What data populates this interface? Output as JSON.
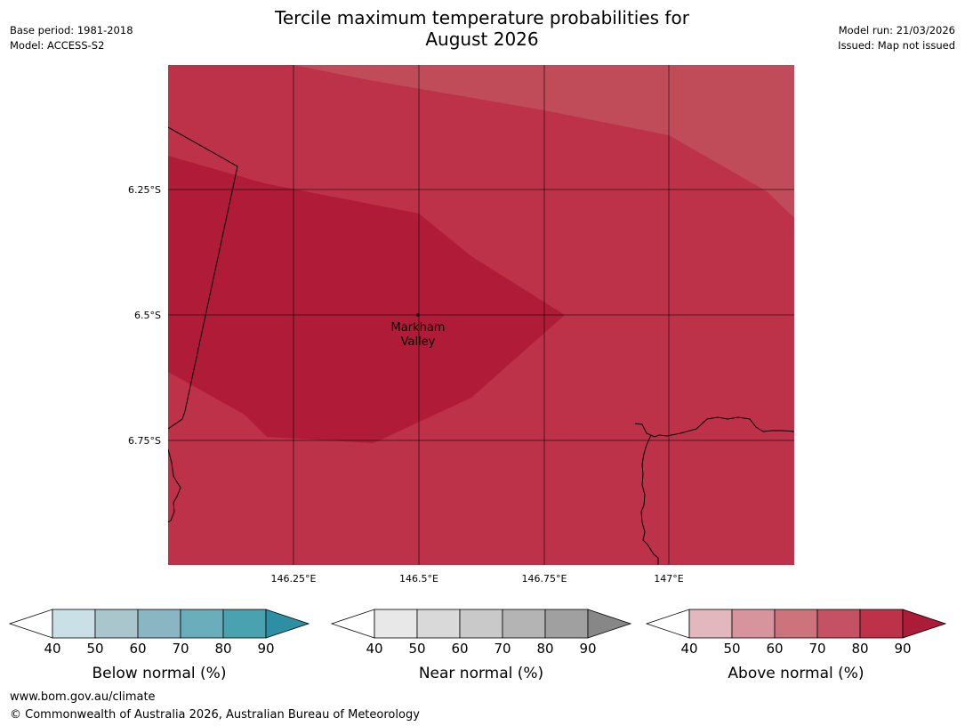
{
  "header": {
    "title_line1": "Tercile maximum temperature probabilities for",
    "title_line2": "August 2026",
    "base_period": "Base period: 1981-2018",
    "model": "Model: ACCESS-S2",
    "model_run": "Model run: 21/03/2026",
    "issued": "Issued: Map not issued"
  },
  "map": {
    "lat_labels": [
      "6.25°S",
      "6.5°S",
      "6.75°S"
    ],
    "lon_labels": [
      "146.25°E",
      "146.5°E",
      "146.75°E",
      "147°E"
    ],
    "place_line1": "Markham",
    "place_line2": "Valley",
    "colors": {
      "above_50_60": "#c04c5a",
      "above_60_70": "#bd3249",
      "above_70_80": "#b01c38",
      "grid": "#000000",
      "coast": "#000000"
    }
  },
  "legends": [
    {
      "label": "Below normal (%)",
      "ticks": [
        "40",
        "50",
        "60",
        "70",
        "80",
        "90"
      ],
      "colors": [
        "#ffffff",
        "#c9e1e6",
        "#a8c6cc",
        "#8ab5c2",
        "#6baebb",
        "#4aa2b0",
        "#2d8fa3"
      ]
    },
    {
      "label": "Near normal (%)",
      "ticks": [
        "40",
        "50",
        "60",
        "70",
        "80",
        "90"
      ],
      "colors": [
        "#ffffff",
        "#e8e8e8",
        "#d9d9d9",
        "#c9c9c9",
        "#b4b4b4",
        "#a0a0a0",
        "#878787"
      ]
    },
    {
      "label": "Above normal (%)",
      "ticks": [
        "40",
        "50",
        "60",
        "70",
        "80",
        "90"
      ],
      "colors": [
        "#ffffff",
        "#e2b7bd",
        "#d7949d",
        "#cc737c",
        "#c45164",
        "#bd3249",
        "#ac1b37"
      ]
    }
  ],
  "footer": {
    "url": "www.bom.gov.au/climate",
    "copyright": "© Commonwealth of Australia 2026, Australian Bureau of Meteorology"
  }
}
